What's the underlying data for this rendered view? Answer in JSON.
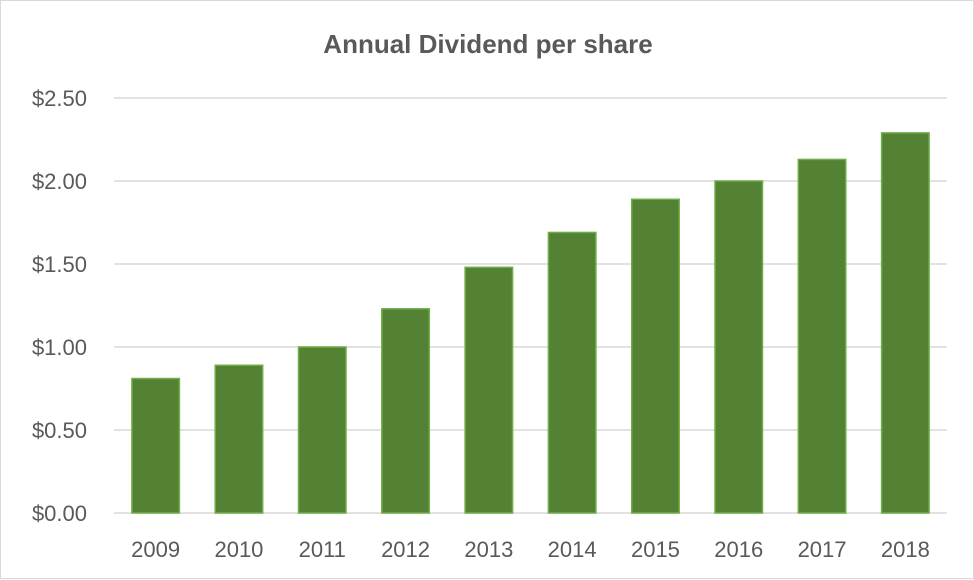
{
  "chart_data": {
    "type": "bar",
    "title": "Annual Dividend per share",
    "xlabel": "",
    "ylabel": "",
    "categories": [
      "2009",
      "2010",
      "2011",
      "2012",
      "2013",
      "2014",
      "2015",
      "2016",
      "2017",
      "2018"
    ],
    "values": [
      0.81,
      0.89,
      1.0,
      1.23,
      1.48,
      1.69,
      1.89,
      2.0,
      2.13,
      2.29
    ],
    "ylim": [
      0,
      2.5
    ],
    "yticks": [
      0,
      0.5,
      1.0,
      1.5,
      2.0,
      2.5
    ],
    "ytick_labels": [
      "$0.00",
      "$0.50",
      "$1.00",
      "$1.50",
      "$2.00",
      "$2.50"
    ],
    "grid": true,
    "legend": "none",
    "colors": {
      "bar_fill": "#548235",
      "bar_border": "#70ad47",
      "grid": "#d9d9d9",
      "text": "#595959"
    }
  }
}
